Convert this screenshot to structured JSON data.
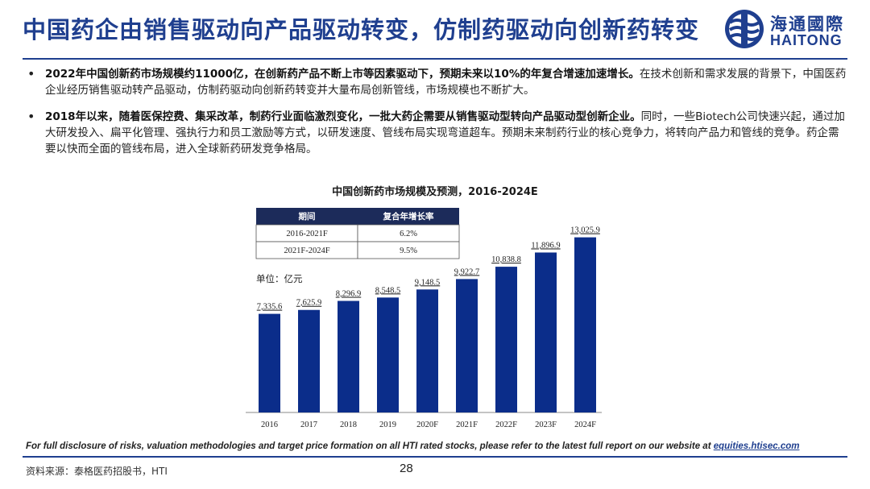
{
  "header": {
    "title": "中国药企由销售驱动向产品驱动转变，仿制药驱动向创新药转变",
    "logo_cn": "海通國際",
    "logo_en": "HAITONG"
  },
  "bullets": [
    {
      "bold": "2022年中国创新药市场规模约11000亿，在创新药产品不断上市等因素驱动下，预期未来以10%的年复合增速加速增长。",
      "normal": "在技术创新和需求发展的背景下，中国医药企业经历销售驱动转产品驱动，仿制药驱动向创新药转变并大量布局创新管线，市场规模也不断扩大。"
    },
    {
      "bold": "2018年以来，随着医保控费、集采改革，制药行业面临激烈变化，一批大药企需要从销售驱动型转向产品驱动型创新企业。",
      "normal": "同时，一些Biotech公司快速兴起，通过加大研发投入、扁平化管理、强执行力和员工激励等方式，以研发速度、管线布局实现弯道超车。预期未来制药行业的核心竞争力，将转向产品力和管线的竞争。药企需要以快而全面的管线布局，进入全球新药研发竞争格局。"
    }
  ],
  "chart_data": {
    "type": "bar",
    "title": "中国创新药市场规模及预测，2016-2024E",
    "categories": [
      "2016",
      "2017",
      "2018",
      "2019",
      "2020F",
      "2021F",
      "2022F",
      "2023F",
      "2024F"
    ],
    "values": [
      7335.6,
      7625.9,
      8296.9,
      8548.5,
      9148.5,
      9922.7,
      10838.8,
      11896.9,
      13025.9
    ],
    "value_labels": [
      "7,335.6",
      "7,625.9",
      "8,296.9",
      "8,548.5",
      "9,148.5",
      "9,922.7",
      "10,838.8",
      "11,896.9",
      "13,025.9"
    ],
    "unit_label": "单位：亿元",
    "ylim": [
      0,
      14500
    ],
    "bar_color": "#0b2d8a",
    "grid": false,
    "legend": "none",
    "table": {
      "headers": [
        "期间",
        "复合年增长率"
      ],
      "rows": [
        [
          "2016-2021F",
          "6.2%"
        ],
        [
          "2021F-2024F",
          "9.5%"
        ]
      ]
    }
  },
  "footer": {
    "disclaimer": "For full disclosure of risks, valuation methodologies and target price formation on all HTI rated stocks, please refer to the latest full report on our website at",
    "link": "equities.htisec.com",
    "source": "资料来源：泰格医药招股书，HTI",
    "page_number": "28"
  },
  "colors": {
    "brand_blue": "#1f3f8f",
    "table_header": "#1c2b5a"
  }
}
